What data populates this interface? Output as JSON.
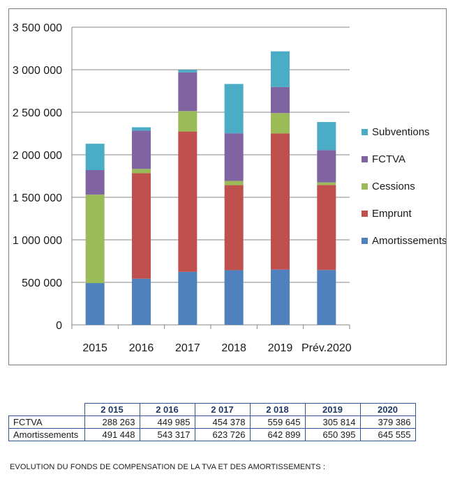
{
  "chart_data": {
    "type": "bar",
    "stacked": true,
    "categories": [
      "2015",
      "2016",
      "2017",
      "2018",
      "2019",
      "Prév.2020"
    ],
    "series": [
      {
        "name": "Amortissements",
        "color": "#4f81bd",
        "values": [
          491448,
          543317,
          623726,
          642899,
          650395,
          645555
        ]
      },
      {
        "name": "Emprunt",
        "color": "#c0504d",
        "values": [
          0,
          1240000,
          1650000,
          1000000,
          1600000,
          1000000
        ]
      },
      {
        "name": "Cessions",
        "color": "#9bbb59",
        "values": [
          1040000,
          50000,
          240000,
          50000,
          240000,
          30000
        ]
      },
      {
        "name": "FCTVA",
        "color": "#8064a2",
        "values": [
          288263,
          449985,
          454378,
          559645,
          305814,
          379386
        ]
      },
      {
        "name": "Subventions",
        "color": "#4bacc6",
        "values": [
          310000,
          40000,
          30000,
          580000,
          420000,
          330000
        ]
      }
    ],
    "ylim": [
      0,
      3500000
    ],
    "yticks": [
      "0",
      "500 000",
      "1 000 000",
      "1 500 000",
      "2 000 000",
      "2 500 000",
      "3 000 000",
      "3 500 000"
    ],
    "grid": true,
    "legend_position": "right",
    "legend_order": [
      "Subventions",
      "FCTVA",
      "Cessions",
      "Emprunt",
      "Amortissements"
    ]
  },
  "table": {
    "headers": [
      "2 015",
      "2 016",
      "2 017",
      "2 018",
      "2019",
      "2020"
    ],
    "rows": [
      {
        "label": "FCTVA",
        "values": [
          "288 263",
          "449 985",
          "454 378",
          "559 645",
          "305 814",
          "379 386"
        ]
      },
      {
        "label": "Amortissements",
        "values": [
          "491 448",
          "543 317",
          "623 726",
          "642 899",
          "650 395",
          "645 555"
        ]
      }
    ]
  },
  "caption": "EVOLUTION DU FONDS DE COMPENSATION DE LA TVA ET DES AMORTISSEMENTS :"
}
